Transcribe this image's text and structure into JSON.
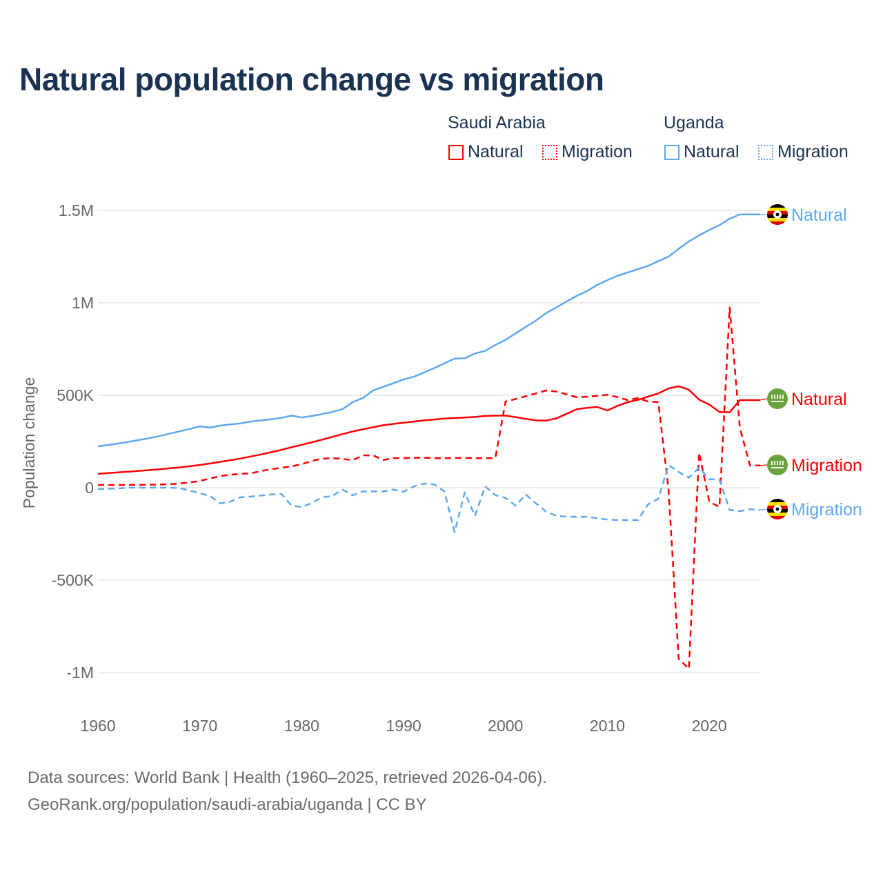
{
  "title": "Natural population change vs migration",
  "legend": {
    "groups": [
      {
        "name": "Saudi Arabia",
        "items": [
          {
            "label": "Natural",
            "style": "solid",
            "color": "#ff0000"
          },
          {
            "label": "Migration",
            "style": "dotted",
            "color": "#ff0000"
          }
        ]
      },
      {
        "name": "Uganda",
        "items": [
          {
            "label": "Natural",
            "style": "solid",
            "color": "#5ea8ef"
          },
          {
            "label": "Migration",
            "style": "dotted",
            "color": "#5ea8ef"
          }
        ]
      }
    ]
  },
  "footer": {
    "line1": "Data sources: World Bank | Health (1960–2025, retrieved 2026-04-06).",
    "line2": "GeoRank.org/population/saudi-arabia/uganda | CC BY"
  },
  "chart_data": {
    "type": "line",
    "title": "Natural population change vs migration",
    "xlabel": "",
    "ylabel": "Population change",
    "xlim": [
      1960,
      2025
    ],
    "ylim": [
      -1100000,
      1550000
    ],
    "x_ticks": [
      1960,
      1970,
      1980,
      1990,
      2000,
      2010,
      2020
    ],
    "x_tick_labels": [
      "1960",
      "1970",
      "1980",
      "1990",
      "2000",
      "2010",
      "2020"
    ],
    "y_ticks": [
      1500000,
      1000000,
      500000,
      0,
      -500000,
      -1000000
    ],
    "y_tick_labels": [
      "1.5M",
      "1M",
      "500K",
      "0",
      "-500K",
      "-1M"
    ],
    "grid": true,
    "legend_placement": "top-right",
    "x_start": 1960,
    "unit": "thousands",
    "series": [
      {
        "name": "Uganda Natural",
        "end_label": "Natural",
        "country": "Uganda",
        "color": "#5ea8ef",
        "dash": false,
        "values": [
          224,
          231,
          239,
          248,
          258,
          268,
          279,
          292,
          305,
          318,
          332,
          325,
          336,
          342,
          348,
          358,
          364,
          370,
          378,
          390,
          380,
          388,
          398,
          410,
          425,
          463,
          485,
          526,
          546,
          565,
          586,
          600,
          623,
          647,
          673,
          698,
          700,
          726,
          740,
          772,
          800,
          835,
          870,
          905,
          945,
          975,
          1008,
          1038,
          1063,
          1097,
          1123,
          1146,
          1165,
          1182,
          1200,
          1225,
          1250,
          1292,
          1332,
          1365,
          1394,
          1420,
          1455,
          1478,
          1478,
          1478
        ]
      },
      {
        "name": "Saudi Arabia Natural",
        "end_label": "Natural",
        "country": "Saudi Arabia",
        "color": "#ff0000",
        "dash": false,
        "values": [
          75,
          79,
          83,
          87,
          91,
          95,
          100,
          105,
          110,
          116,
          123,
          131,
          140,
          149,
          158,
          169,
          180,
          192,
          205,
          219,
          232,
          246,
          260,
          275,
          290,
          304,
          316,
          327,
          338,
          345,
          352,
          358,
          364,
          369,
          374,
          377,
          380,
          383,
          388,
          390,
          390,
          382,
          372,
          365,
          363,
          375,
          400,
          425,
          432,
          437,
          418,
          443,
          463,
          475,
          493,
          510,
          537,
          549,
          530,
          476,
          450,
          410,
          408,
          474,
          474,
          474
        ]
      },
      {
        "name": "Saudi Arabia Migration",
        "end_label": "Migration",
        "country": "Saudi Arabia",
        "color": "#ff0000",
        "dash": true,
        "values": [
          15,
          15,
          15,
          15,
          16,
          16,
          17,
          19,
          23,
          28,
          37,
          50,
          63,
          70,
          75,
          78,
          90,
          100,
          108,
          116,
          127,
          145,
          157,
          160,
          156,
          149,
          175,
          175,
          150,
          160,
          160,
          162,
          162,
          160,
          160,
          161,
          161,
          160,
          160,
          160,
          466,
          480,
          495,
          510,
          526,
          520,
          505,
          489,
          492,
          497,
          503,
          490,
          474,
          485,
          466,
          463,
          -10,
          -925,
          -980,
          190,
          -75,
          -105,
          975,
          325,
          120,
          120
        ]
      },
      {
        "name": "Uganda Migration",
        "end_label": "Migration",
        "country": "Uganda",
        "color": "#5ea8ef",
        "dash": true,
        "values": [
          -7,
          -6,
          -4,
          0,
          0,
          0,
          0,
          0,
          -2,
          -15,
          -30,
          -45,
          -85,
          -75,
          -52,
          -48,
          -42,
          -37,
          -33,
          -97,
          -105,
          -82,
          -52,
          -45,
          -10,
          -41,
          -20,
          -20,
          -20,
          -10,
          -22,
          7,
          22,
          18,
          -20,
          -240,
          -25,
          -152,
          7,
          -40,
          -55,
          -97,
          -37,
          -85,
          -130,
          -152,
          -157,
          -157,
          -157,
          -165,
          -172,
          -175,
          -175,
          -175,
          -90,
          -60,
          123,
          85,
          55,
          108,
          45,
          45,
          -120,
          -127,
          -116,
          -120
        ]
      }
    ]
  }
}
